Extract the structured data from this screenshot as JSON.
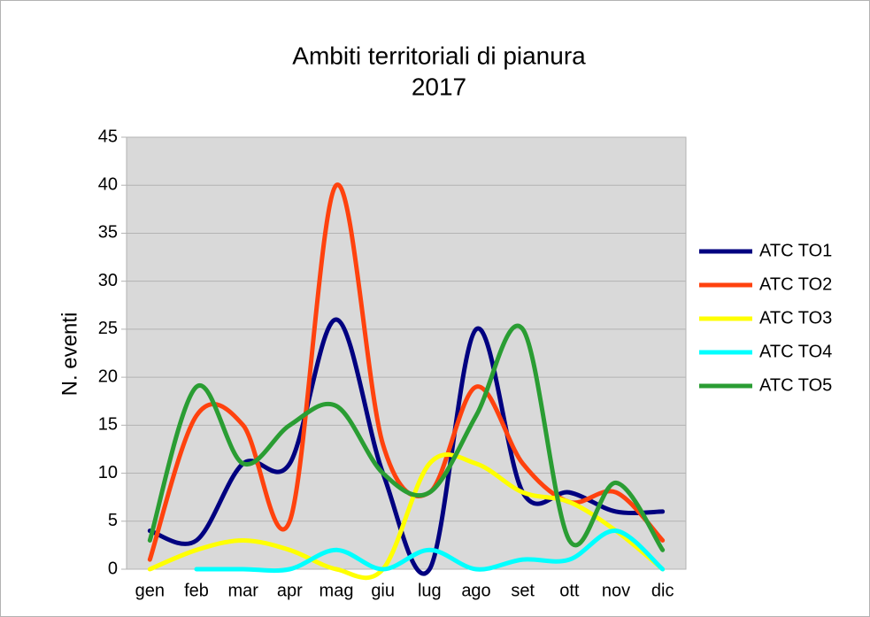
{
  "chart_data": {
    "type": "line",
    "title": "Ambiti territoriali di pianura",
    "subtitle": "2017",
    "y_label": "N. eventi",
    "categories": [
      "gen",
      "feb",
      "mar",
      "apr",
      "mag",
      "giu",
      "lug",
      "ago",
      "set",
      "ott",
      "nov",
      "dic"
    ],
    "ylim": [
      0,
      45
    ],
    "yticks": [
      0,
      5,
      10,
      15,
      20,
      25,
      30,
      35,
      40,
      45
    ],
    "grid": true,
    "smooth": true,
    "legend": "right",
    "series": [
      {
        "name": "ATC TO1",
        "color": "#000080",
        "values": [
          4,
          3,
          11,
          11,
          26,
          10,
          0,
          25,
          8,
          8,
          6,
          6
        ]
      },
      {
        "name": "ATC TO2",
        "color": "#ff420e",
        "values": [
          1,
          16,
          15,
          5,
          40,
          13,
          8,
          19,
          11,
          7,
          8,
          3
        ]
      },
      {
        "name": "ATC TO3",
        "color": "#ffff00",
        "values": [
          0,
          2,
          3,
          2,
          0,
          0,
          11,
          11,
          8,
          7,
          4,
          0
        ]
      },
      {
        "name": "ATC TO4",
        "color": "#00ffff",
        "values": [
          null,
          0,
          0,
          0,
          2,
          0,
          2,
          0,
          1,
          1,
          4,
          0
        ]
      },
      {
        "name": "ATC TO5",
        "color": "#2a9d33",
        "values": [
          3,
          19,
          11,
          15,
          17,
          10,
          8,
          16,
          25,
          3,
          9,
          2
        ]
      }
    ]
  }
}
